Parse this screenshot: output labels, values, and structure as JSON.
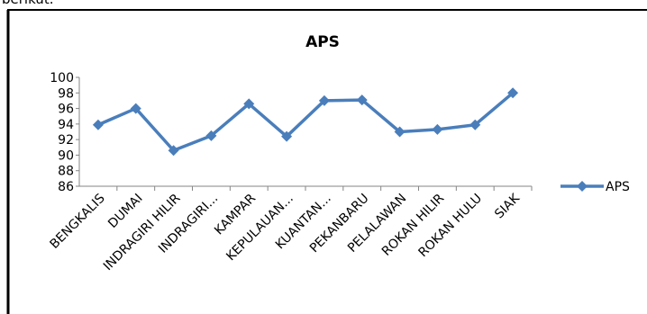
{
  "caption": "berikut.",
  "chart_data": {
    "type": "line",
    "title": "APS",
    "categories": [
      "BENGKALIS",
      "DUMAI",
      "INDRAGIRI HILIR",
      "INDRAGIRI...",
      "KAMPAR",
      "KEPULAUAN...",
      "KUANTAN...",
      "PEKANBARU",
      "PELALAWAN",
      "ROKAN HILIR",
      "ROKAN HULU",
      "SIAK"
    ],
    "series": [
      {
        "name": "APS",
        "color": "#4a7ebb",
        "values": [
          93.9,
          96,
          90.6,
          92.5,
          96.6,
          92.4,
          97,
          97.1,
          93,
          93.3,
          93.9,
          98
        ]
      }
    ],
    "ylim": [
      86,
      100
    ],
    "yticks": [
      86,
      88,
      90,
      92,
      94,
      96,
      98,
      100
    ],
    "grid": false,
    "legend": "right"
  }
}
